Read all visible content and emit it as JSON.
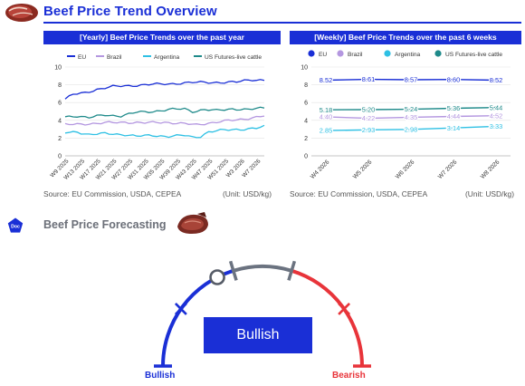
{
  "header": {
    "title": "Beef Price Trend Overview"
  },
  "yearly": {
    "panel_title": "[Yearly] Beef Price Trends over the past year",
    "source": "Source: EU Commission, USDA, CEPEA",
    "unit": "(Unit: USD/kg)"
  },
  "weekly": {
    "panel_title": "[Weekly] Beef Price Trends over the past 6 weeks",
    "source": "Source: EU Commission, USDA, CEPEA",
    "unit": "(Unit: USD/kg)"
  },
  "forecast": {
    "badge": "Doc",
    "title": "Beef Price Forecasting",
    "verdict": "Bullish",
    "left_label": "Bullish",
    "right_label": "Bearish",
    "indicator_level": 0.35,
    "colors": {
      "bull": "#1a2fd6",
      "neutral": "#6b7380",
      "bear": "#e8343a"
    }
  },
  "chart_data": [
    {
      "type": "line",
      "title": "[Yearly] Beef Price Trends over the past year",
      "legend_position": "top",
      "grid": true,
      "ylim": [
        0,
        10
      ],
      "y_ticks": [
        "0",
        "2",
        "4",
        "6",
        "8",
        "10"
      ],
      "x_ticks": [
        "W9 2025",
        "W13 2025",
        "W17 2025",
        "W21 2025",
        "W27 2025",
        "W31 2025",
        "W35 2025",
        "W39 2025",
        "W43 2025",
        "W47 2025",
        "W51 2025",
        "W3 2026",
        "W7 2026"
      ],
      "n_points": 51,
      "series": [
        {
          "name": "EU",
          "color": "#1a2fd6",
          "anchors": [
            [
              0,
              6.4
            ],
            [
              2,
              6.9
            ],
            [
              5,
              7.1
            ],
            [
              8,
              7.5
            ],
            [
              12,
              7.8
            ],
            [
              16,
              7.9
            ],
            [
              20,
              8.0
            ],
            [
              25,
              8.1
            ],
            [
              30,
              8.2
            ],
            [
              35,
              8.3
            ],
            [
              40,
              8.25
            ],
            [
              43,
              8.3
            ],
            [
              45,
              8.5
            ],
            [
              47,
              8.6
            ],
            [
              50,
              8.5
            ]
          ]
        },
        {
          "name": "Brazil",
          "color": "#b497e0",
          "anchors": [
            [
              0,
              3.5
            ],
            [
              5,
              3.6
            ],
            [
              10,
              3.7
            ],
            [
              15,
              3.8
            ],
            [
              20,
              3.7
            ],
            [
              25,
              3.8
            ],
            [
              30,
              3.6
            ],
            [
              33,
              3.5
            ],
            [
              36,
              3.7
            ],
            [
              40,
              3.9
            ],
            [
              44,
              4.1
            ],
            [
              47,
              4.3
            ],
            [
              50,
              4.5
            ]
          ]
        },
        {
          "name": "Argentina",
          "color": "#2ec0e4",
          "anchors": [
            [
              0,
              2.6
            ],
            [
              3,
              2.7
            ],
            [
              6,
              2.4
            ],
            [
              10,
              2.5
            ],
            [
              15,
              2.4
            ],
            [
              18,
              2.2
            ],
            [
              22,
              2.3
            ],
            [
              26,
              2.2
            ],
            [
              30,
              2.3
            ],
            [
              32,
              2.1
            ],
            [
              34,
              2.2
            ],
            [
              36,
              2.7
            ],
            [
              40,
              2.9
            ],
            [
              44,
              3.0
            ],
            [
              48,
              3.1
            ],
            [
              50,
              3.3
            ]
          ]
        },
        {
          "name": "US Futures-live cattle",
          "color": "#1e8a8a",
          "anchors": [
            [
              0,
              4.4
            ],
            [
              3,
              4.5
            ],
            [
              6,
              4.3
            ],
            [
              10,
              4.6
            ],
            [
              14,
              4.5
            ],
            [
              18,
              4.9
            ],
            [
              22,
              5.0
            ],
            [
              26,
              5.2
            ],
            [
              30,
              5.3
            ],
            [
              32,
              5.0
            ],
            [
              35,
              5.2
            ],
            [
              38,
              5.1
            ],
            [
              42,
              5.3
            ],
            [
              46,
              5.2
            ],
            [
              50,
              5.4
            ]
          ]
        }
      ]
    },
    {
      "type": "line",
      "title": "[Weekly] Beef Price Trends over the past 6 weeks",
      "legend_position": "top",
      "grid": true,
      "ylim": [
        0,
        10
      ],
      "y_ticks": [
        "0",
        "2",
        "4",
        "6",
        "8",
        "10"
      ],
      "categories": [
        "W4 2026",
        "W5 2026",
        "W6 2026",
        "W7 2026",
        "W8 2026"
      ],
      "series": [
        {
          "name": "EU",
          "color": "#1a2fd6",
          "values": [
            8.52,
            8.61,
            8.57,
            8.6,
            8.52
          ]
        },
        {
          "name": "Brazil",
          "color": "#b497e0",
          "values": [
            4.4,
            4.22,
            4.35,
            4.44,
            4.52
          ]
        },
        {
          "name": "Argentina",
          "color": "#2ec0e4",
          "values": [
            2.85,
            2.93,
            2.98,
            3.14,
            3.33
          ]
        },
        {
          "name": "US Futures-live cattle",
          "color": "#1e8a8a",
          "values": [
            5.18,
            5.2,
            5.24,
            5.36,
            5.44
          ]
        }
      ]
    }
  ]
}
